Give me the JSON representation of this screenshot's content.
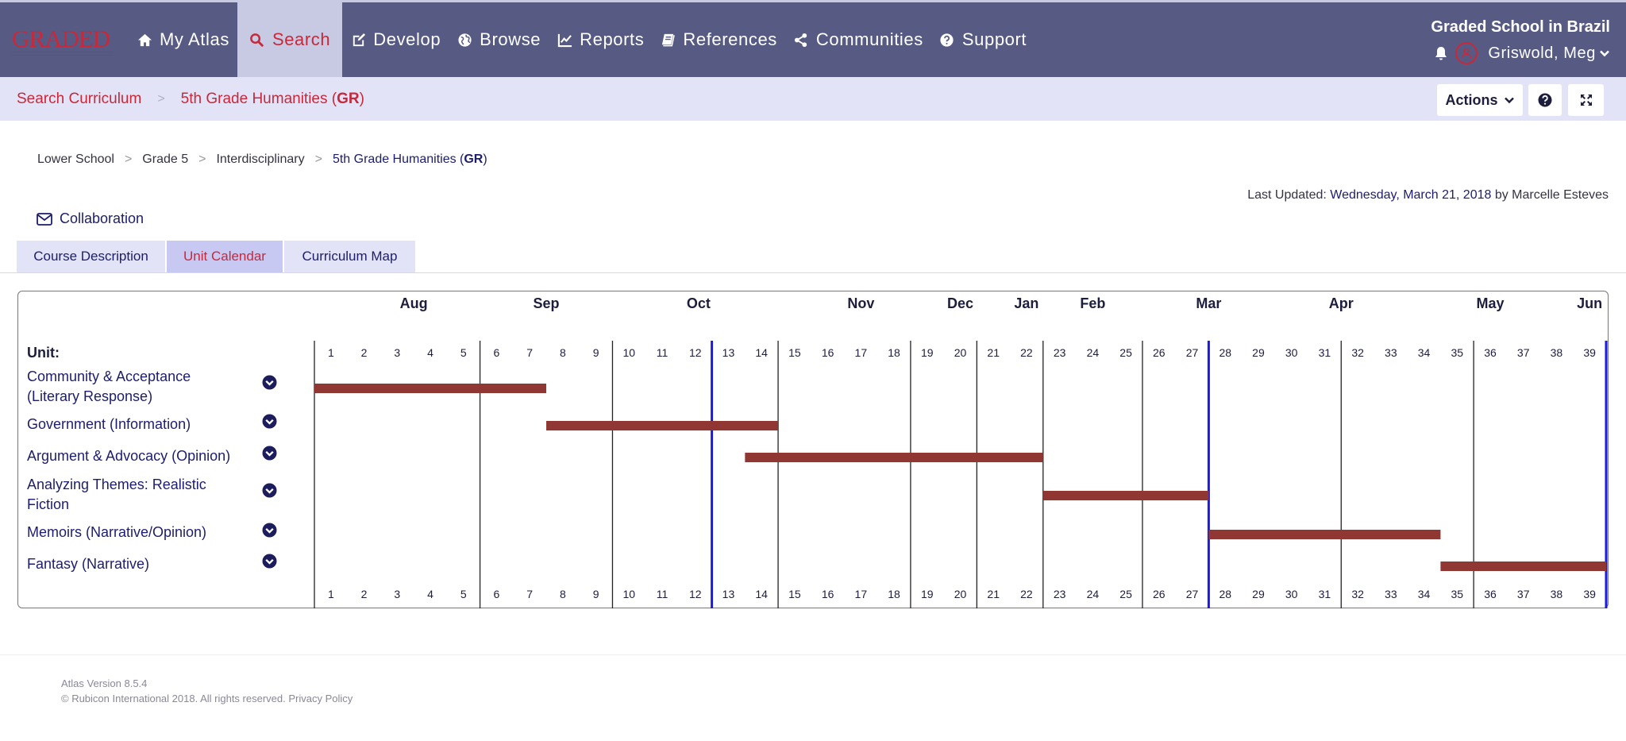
{
  "header": {
    "logo_text": "GRADED",
    "nav": [
      {
        "label": "My Atlas",
        "icon": "home-icon"
      },
      {
        "label": "Search",
        "icon": "search-icon",
        "active": true
      },
      {
        "label": "Develop",
        "icon": "edit-icon"
      },
      {
        "label": "Browse",
        "icon": "globe-icon"
      },
      {
        "label": "Reports",
        "icon": "line-chart-icon"
      },
      {
        "label": "References",
        "icon": "book-icon"
      },
      {
        "label": "Communities",
        "icon": "share-icon"
      },
      {
        "label": "Support",
        "icon": "question-circle-icon"
      }
    ],
    "school": "Graded School in Brazil",
    "user": "Griswold, Meg"
  },
  "subbar": {
    "crumb_root": "Search Curriculum",
    "crumb_course_prefix": "5th Grade Humanities (",
    "crumb_course_code": "GR",
    "crumb_course_suffix": ")",
    "actions_label": "Actions"
  },
  "breadcrumb": {
    "items": [
      "Lower School",
      "Grade 5",
      "Interdisciplinary"
    ],
    "current_prefix": "5th Grade Humanities (",
    "current_code": "GR",
    "current_suffix": ")"
  },
  "updated": {
    "prefix": "Last Updated: ",
    "date": "Wednesday, March 21, 2018",
    "suffix": " by Marcelle Esteves"
  },
  "collaboration": "Collaboration",
  "tabs": [
    {
      "label": "Course Description",
      "active": false
    },
    {
      "label": "Unit Calendar",
      "active": true
    },
    {
      "label": "Curriculum Map",
      "active": false
    }
  ],
  "calendar": {
    "unit_header": "Unit:",
    "months": [
      {
        "label": "Aug",
        "week": 3.5
      },
      {
        "label": "Sep",
        "week": 7.5
      },
      {
        "label": "Oct",
        "week": 12.1
      },
      {
        "label": "Nov",
        "week": 17.0
      },
      {
        "label": "Dec",
        "week": 20.0
      },
      {
        "label": "Jan",
        "week": 22.0
      },
      {
        "label": "Feb",
        "week": 24.0
      },
      {
        "label": "Mar",
        "week": 27.5
      },
      {
        "label": "Apr",
        "week": 31.5
      },
      {
        "label": "May",
        "week": 36.0
      },
      {
        "label": "Jun",
        "week": 39.0
      }
    ],
    "weeks": [
      "1",
      "2",
      "3",
      "4",
      "5",
      "6",
      "7",
      "8",
      "9",
      "10",
      "11",
      "12",
      "13",
      "14",
      "15",
      "16",
      "17",
      "18",
      "19",
      "20",
      "21",
      "22",
      "23",
      "24",
      "25",
      "26",
      "27",
      "28",
      "29",
      "30",
      "31",
      "32",
      "33",
      "34",
      "35",
      "36",
      "37",
      "38",
      "39"
    ],
    "month_dividers": [
      5,
      9,
      12,
      14,
      18,
      20,
      22,
      25,
      27,
      31,
      35
    ],
    "highlight_dividers": [
      12,
      27,
      39
    ],
    "bar_color": "#913733",
    "units": [
      {
        "name": "Community & Acceptance (Literary Response)",
        "start_week": 0,
        "end_week": 7.0
      },
      {
        "name": "Government (Information)",
        "start_week": 7.0,
        "end_week": 14.0
      },
      {
        "name": "Argument & Advocacy (Opinion)",
        "start_week": 13.0,
        "end_week": 22.0
      },
      {
        "name": "Analyzing Themes: Realistic Fiction",
        "start_week": 22.0,
        "end_week": 27.0
      },
      {
        "name": "Memoirs (Narrative/Opinion)",
        "start_week": 27.0,
        "end_week": 34.0
      },
      {
        "name": "Fantasy (Narrative)",
        "start_week": 34.0,
        "end_week": 39.0
      }
    ]
  },
  "footer": {
    "version": "Atlas Version 8.5.4",
    "copyright": "© Rubicon International 2018. All rights reserved. ",
    "privacy": "Privacy Policy"
  }
}
